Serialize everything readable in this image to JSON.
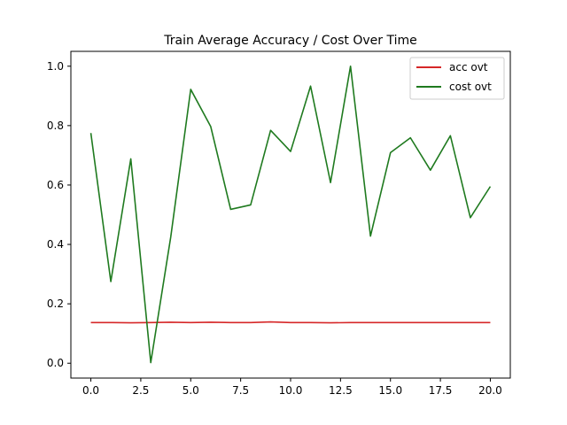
{
  "chart_data": {
    "type": "line",
    "title": "Train Average Accuracy / Cost Over Time",
    "xlabel": "",
    "ylabel": "",
    "xlim": [
      -1.0,
      21.0
    ],
    "ylim": [
      -0.05,
      1.05
    ],
    "x_ticks": [
      0.0,
      2.5,
      5.0,
      7.5,
      10.0,
      12.5,
      15.0,
      17.5,
      20.0
    ],
    "x_tick_labels": [
      "0.0",
      "2.5",
      "5.0",
      "7.5",
      "10.0",
      "12.5",
      "15.0",
      "17.5",
      "20.0"
    ],
    "y_ticks": [
      0.0,
      0.2,
      0.4,
      0.6,
      0.8,
      1.0
    ],
    "y_tick_labels": [
      "0.0",
      "0.2",
      "0.4",
      "0.6",
      "0.8",
      "1.0"
    ],
    "grid": false,
    "legend_position": "top-right",
    "x": [
      0,
      1,
      2,
      3,
      4,
      5,
      6,
      7,
      8,
      9,
      10,
      11,
      12,
      13,
      14,
      15,
      16,
      17,
      18,
      19,
      20
    ],
    "series": [
      {
        "name": "acc ovt",
        "color": "#d62728",
        "values": [
          0.137,
          0.137,
          0.136,
          0.137,
          0.138,
          0.137,
          0.138,
          0.137,
          0.137,
          0.139,
          0.137,
          0.137,
          0.136,
          0.137,
          0.137,
          0.137,
          0.137,
          0.137,
          0.137,
          0.137,
          0.137
        ]
      },
      {
        "name": "cost ovt",
        "color": "#1f7a1f",
        "values": [
          0.775,
          0.275,
          0.688,
          0.002,
          0.425,
          0.922,
          0.797,
          0.518,
          0.533,
          0.784,
          0.713,
          0.933,
          0.608,
          1.0,
          0.428,
          0.709,
          0.759,
          0.65,
          0.766,
          0.49,
          0.595
        ]
      }
    ]
  }
}
